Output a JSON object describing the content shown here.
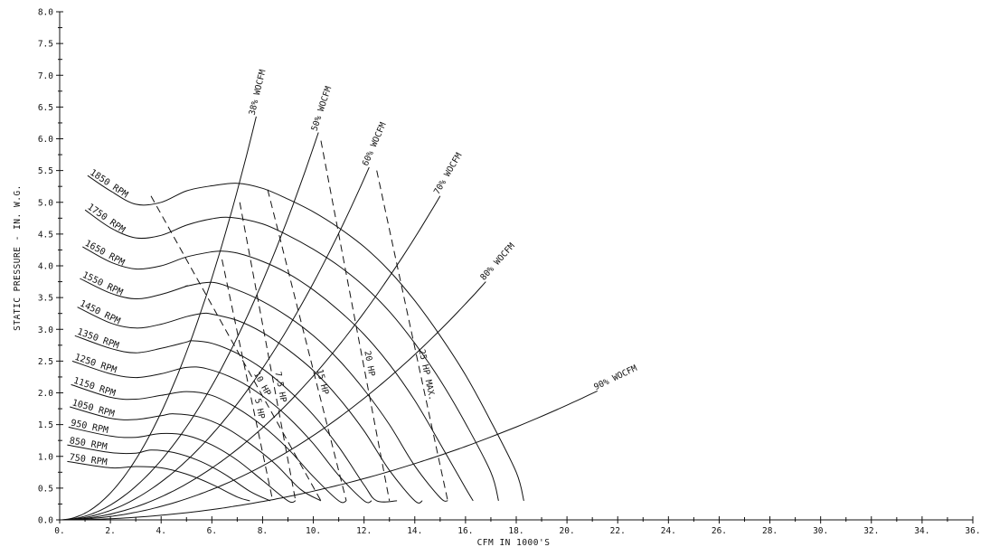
{
  "chart_data": {
    "type": "line",
    "title": "",
    "xlabel": "CFM IN  1000'S",
    "ylabel": "STATIC PRESSURE - IN. W.G.",
    "xlim": [
      0,
      36
    ],
    "ylim": [
      0,
      8
    ],
    "x_ticks": [
      "0.",
      "2.",
      "4.",
      "6.",
      "8.",
      "10.",
      "12.",
      "14.",
      "16.",
      "18.",
      "20.",
      "22.",
      "24.",
      "26.",
      "28.",
      "30.",
      "32.",
      "34.",
      "36."
    ],
    "y_ticks": [
      "0.0",
      "0.5",
      "1.0",
      "1.5",
      "2.0",
      "2.5",
      "3.0",
      "3.5",
      "4.0",
      "4.5",
      "5.0",
      "5.5",
      "6.0",
      "6.5",
      "7.0",
      "7.5",
      "8.0"
    ],
    "grid": false,
    "fan_curves": [
      {
        "name": "1850 RPM",
        "points": [
          [
            1.1,
            5.42
          ],
          [
            2.0,
            5.18
          ],
          [
            3.0,
            4.97
          ],
          [
            4.0,
            5.0
          ],
          [
            5.0,
            5.18
          ],
          [
            6.0,
            5.26
          ],
          [
            7.0,
            5.3
          ],
          [
            8.0,
            5.22
          ],
          [
            9.0,
            5.05
          ],
          [
            10.0,
            4.85
          ],
          [
            11.0,
            4.6
          ],
          [
            12.0,
            4.3
          ],
          [
            13.0,
            3.92
          ],
          [
            14.0,
            3.45
          ],
          [
            15.0,
            2.9
          ],
          [
            16.0,
            2.28
          ],
          [
            17.0,
            1.55
          ],
          [
            18.0,
            0.75
          ],
          [
            18.3,
            0.3
          ]
        ]
      },
      {
        "name": "1750 RPM",
        "points": [
          [
            1.0,
            4.88
          ],
          [
            2.0,
            4.6
          ],
          [
            3.0,
            4.44
          ],
          [
            4.0,
            4.48
          ],
          [
            5.0,
            4.64
          ],
          [
            6.0,
            4.74
          ],
          [
            6.8,
            4.76
          ],
          [
            8.0,
            4.66
          ],
          [
            9.0,
            4.48
          ],
          [
            10.0,
            4.26
          ],
          [
            11.0,
            4.0
          ],
          [
            12.0,
            3.68
          ],
          [
            13.0,
            3.28
          ],
          [
            14.0,
            2.78
          ],
          [
            15.0,
            2.2
          ],
          [
            16.0,
            1.52
          ],
          [
            17.0,
            0.75
          ],
          [
            17.3,
            0.3
          ]
        ]
      },
      {
        "name": "1650 RPM",
        "points": [
          [
            0.9,
            4.3
          ],
          [
            2.0,
            4.06
          ],
          [
            3.0,
            3.95
          ],
          [
            4.0,
            4.0
          ],
          [
            5.0,
            4.14
          ],
          [
            6.0,
            4.22
          ],
          [
            6.4,
            4.23
          ],
          [
            7.0,
            4.2
          ],
          [
            8.0,
            4.07
          ],
          [
            9.0,
            3.88
          ],
          [
            10.0,
            3.62
          ],
          [
            11.0,
            3.3
          ],
          [
            12.0,
            2.92
          ],
          [
            13.0,
            2.45
          ],
          [
            14.0,
            1.88
          ],
          [
            15.0,
            1.2
          ],
          [
            16.0,
            0.5
          ],
          [
            16.3,
            0.3
          ]
        ]
      },
      {
        "name": "1550 RPM",
        "points": [
          [
            0.8,
            3.8
          ],
          [
            2.0,
            3.57
          ],
          [
            3.0,
            3.48
          ],
          [
            4.0,
            3.55
          ],
          [
            5.0,
            3.68
          ],
          [
            5.0,
            3.68
          ],
          [
            6.0,
            3.74
          ],
          [
            7.0,
            3.62
          ],
          [
            8.0,
            3.44
          ],
          [
            9.0,
            3.2
          ],
          [
            10.0,
            2.9
          ],
          [
            11.0,
            2.52
          ],
          [
            12.0,
            2.05
          ],
          [
            13.0,
            1.5
          ],
          [
            14.0,
            0.85
          ],
          [
            15.0,
            0.35
          ],
          [
            15.3,
            0.3
          ]
        ]
      },
      {
        "name": "1450 RPM",
        "points": [
          [
            0.7,
            3.35
          ],
          [
            2.0,
            3.1
          ],
          [
            3.0,
            3.02
          ],
          [
            4.0,
            3.08
          ],
          [
            5.0,
            3.2
          ],
          [
            5.6,
            3.25
          ],
          [
            6.0,
            3.24
          ],
          [
            7.0,
            3.14
          ],
          [
            8.0,
            2.95
          ],
          [
            9.0,
            2.68
          ],
          [
            10.0,
            2.35
          ],
          [
            11.0,
            1.92
          ],
          [
            12.0,
            1.4
          ],
          [
            13.0,
            0.78
          ],
          [
            14.0,
            0.3
          ],
          [
            14.3,
            0.3
          ]
        ]
      },
      {
        "name": "1350 RPM",
        "points": [
          [
            0.6,
            2.9
          ],
          [
            2.0,
            2.7
          ],
          [
            3.0,
            2.63
          ],
          [
            4.0,
            2.7
          ],
          [
            5.0,
            2.8
          ],
          [
            5.2,
            2.82
          ],
          [
            6.0,
            2.78
          ],
          [
            7.0,
            2.62
          ],
          [
            8.0,
            2.38
          ],
          [
            9.0,
            2.05
          ],
          [
            10.0,
            1.65
          ],
          [
            11.0,
            1.15
          ],
          [
            12.0,
            0.55
          ],
          [
            12.5,
            0.3
          ],
          [
            13.3,
            0.3
          ]
        ]
      },
      {
        "name": "1250 RPM",
        "points": [
          [
            0.5,
            2.5
          ],
          [
            2.0,
            2.3
          ],
          [
            3.0,
            2.24
          ],
          [
            4.0,
            2.3
          ],
          [
            5.0,
            2.4
          ],
          [
            5.8,
            2.38
          ],
          [
            7.0,
            2.2
          ],
          [
            8.0,
            1.95
          ],
          [
            9.0,
            1.62
          ],
          [
            10.0,
            1.2
          ],
          [
            11.0,
            0.7
          ],
          [
            12.0,
            0.3
          ],
          [
            12.3,
            0.3
          ]
        ]
      },
      {
        "name": "1150 RPM",
        "points": [
          [
            0.45,
            2.13
          ],
          [
            2.0,
            1.93
          ],
          [
            3.0,
            1.9
          ],
          [
            4.0,
            1.96
          ],
          [
            5.0,
            2.02
          ],
          [
            6.0,
            1.96
          ],
          [
            7.0,
            1.76
          ],
          [
            8.0,
            1.48
          ],
          [
            9.0,
            1.12
          ],
          [
            10.0,
            0.68
          ],
          [
            11.0,
            0.3
          ],
          [
            11.3,
            0.3
          ]
        ]
      },
      {
        "name": "1050 RPM",
        "points": [
          [
            0.4,
            1.78
          ],
          [
            2.0,
            1.6
          ],
          [
            3.0,
            1.58
          ],
          [
            4.0,
            1.64
          ],
          [
            4.5,
            1.67
          ],
          [
            5.5,
            1.62
          ],
          [
            6.5,
            1.46
          ],
          [
            7.5,
            1.2
          ],
          [
            8.5,
            0.88
          ],
          [
            9.5,
            0.48
          ],
          [
            10.3,
            0.3
          ]
        ]
      },
      {
        "name": "950 RPM",
        "points": [
          [
            0.35,
            1.46
          ],
          [
            2.0,
            1.32
          ],
          [
            3.0,
            1.3
          ],
          [
            4.0,
            1.36
          ],
          [
            5.0,
            1.33
          ],
          [
            6.0,
            1.18
          ],
          [
            7.0,
            0.94
          ],
          [
            8.0,
            0.62
          ],
          [
            9.0,
            0.3
          ],
          [
            9.3,
            0.3
          ]
        ]
      },
      {
        "name": "850 RPM",
        "points": [
          [
            0.3,
            1.18
          ],
          [
            2.0,
            1.06
          ],
          [
            3.0,
            1.05
          ],
          [
            3.6,
            1.1
          ],
          [
            4.5,
            1.06
          ],
          [
            5.5,
            0.93
          ],
          [
            6.5,
            0.72
          ],
          [
            7.5,
            0.45
          ],
          [
            8.3,
            0.3
          ]
        ]
      },
      {
        "name": "750 RPM",
        "points": [
          [
            0.3,
            0.92
          ],
          [
            2.0,
            0.82
          ],
          [
            3.0,
            0.84
          ],
          [
            4.0,
            0.82
          ],
          [
            5.0,
            0.72
          ],
          [
            6.0,
            0.56
          ],
          [
            7.0,
            0.36
          ],
          [
            7.5,
            0.3
          ]
        ]
      }
    ],
    "system_curves": [
      {
        "name": "38% WOCFM",
        "end": [
          7.75,
          6.35
        ]
      },
      {
        "name": "50% WOCFM",
        "end": [
          10.2,
          6.1
        ]
      },
      {
        "name": "60% WOCFM",
        "end": [
          12.2,
          5.55
        ]
      },
      {
        "name": "70% WOCFM",
        "end": [
          15.0,
          5.1
        ]
      },
      {
        "name": "80% WOCFM",
        "end": [
          16.8,
          3.75
        ]
      },
      {
        "name": "90% WOCFM",
        "end": [
          21.2,
          2.03
        ]
      }
    ],
    "hp_curves": [
      {
        "name": "5 HP",
        "points": [
          [
            6.4,
            4.1
          ],
          [
            8.4,
            0.3
          ]
        ]
      },
      {
        "name": "7.5 HP",
        "points": [
          [
            7.1,
            5.0
          ],
          [
            9.3,
            0.3
          ]
        ]
      },
      {
        "name": "10 HP",
        "points": [
          [
            3.6,
            5.1
          ],
          [
            10.3,
            0.3
          ]
        ]
      },
      {
        "name": "15 HP",
        "points": [
          [
            8.2,
            5.2
          ],
          [
            11.3,
            0.3
          ]
        ]
      },
      {
        "name": "20 HP",
        "points": [
          [
            10.3,
            5.97
          ],
          [
            13.0,
            0.3
          ]
        ]
      },
      {
        "name": "25 HP MAX.",
        "points": [
          [
            12.5,
            5.5
          ],
          [
            15.3,
            0.3
          ]
        ]
      }
    ]
  }
}
